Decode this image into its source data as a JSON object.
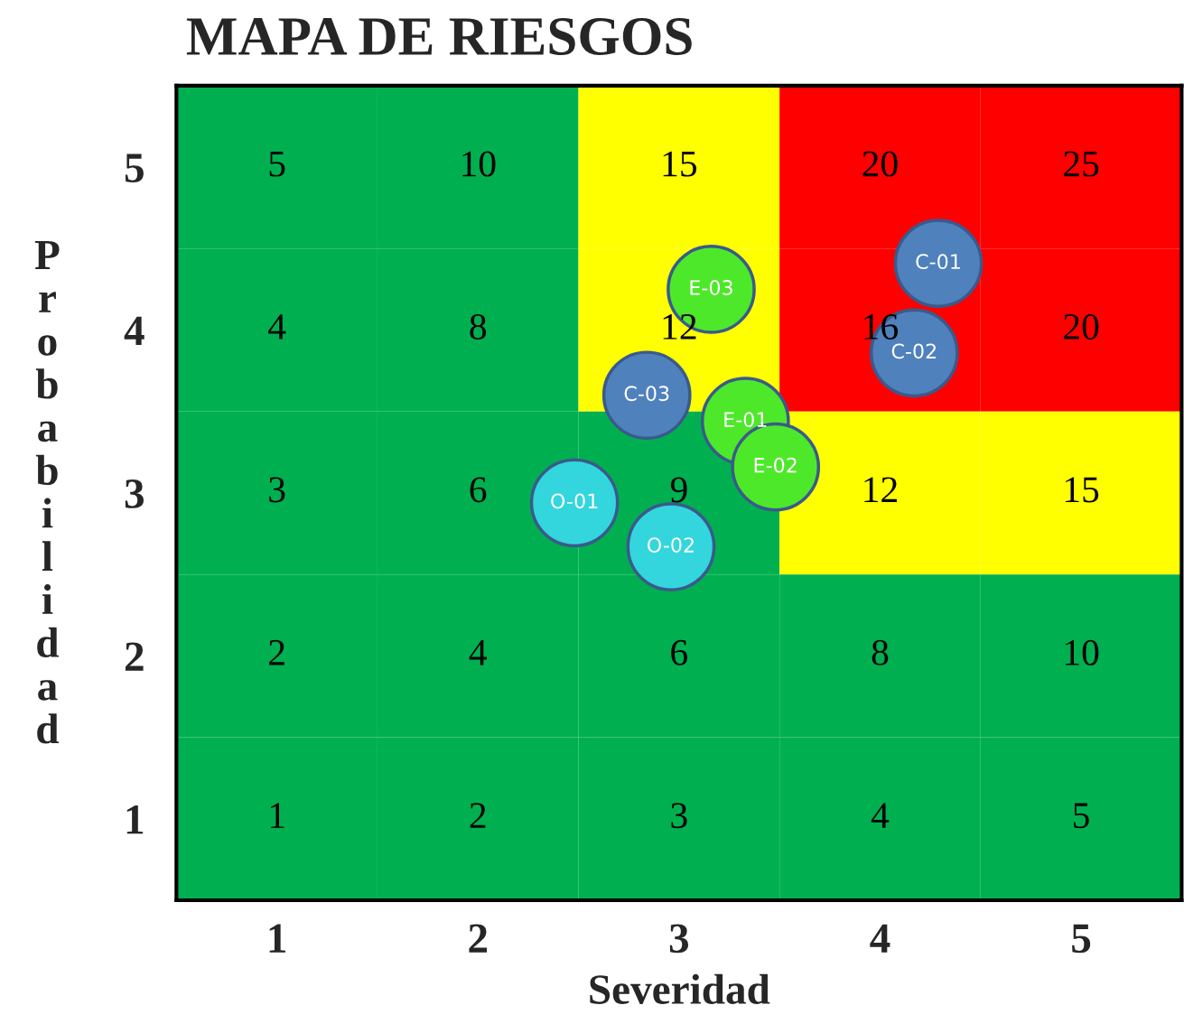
{
  "chart_data": {
    "type": "heatmap",
    "title": "MAPA DE RIESGOS",
    "xlabel": "Severidad",
    "ylabel": "Probabilidad",
    "x": [
      1,
      2,
      3,
      4,
      5
    ],
    "xlim": [
      0.5,
      5.5
    ],
    "xticks": [
      1,
      2,
      3,
      4,
      5
    ],
    "ylim": [
      0.5,
      5.5
    ],
    "yticks": [
      1,
      2,
      3,
      4,
      5
    ],
    "cells": [
      [
        5,
        10,
        15,
        20,
        25
      ],
      [
        4,
        8,
        12,
        16,
        20
      ],
      [
        3,
        6,
        9,
        12,
        15
      ],
      [
        2,
        4,
        6,
        8,
        10
      ],
      [
        1,
        2,
        3,
        4,
        5
      ]
    ],
    "colors": [
      [
        "#00b050",
        "#00b050",
        "#ffff00",
        "#ff0000",
        "#ff0000"
      ],
      [
        "#00b050",
        "#00b050",
        "#ffff00",
        "#ff0000",
        "#ff0000"
      ],
      [
        "#00b050",
        "#00b050",
        "#00b050",
        "#ffff00",
        "#ffff00"
      ],
      [
        "#00b050",
        "#00b050",
        "#00b050",
        "#00b050",
        "#00b050"
      ],
      [
        "#00b050",
        "#00b050",
        "#00b050",
        "#00b050",
        "#00b050"
      ]
    ],
    "data_labels": true,
    "series": [
      {
        "type": "scatter",
        "name": "C-01",
        "color": "#4f81bd",
        "x": [
          4.29
        ],
        "values": [
          4.41
        ],
        "value_labels": [
          null
        ]
      },
      {
        "type": "scatter",
        "name": "C-02",
        "color": "#4f81bd",
        "x": [
          4.17
        ],
        "values": [
          3.86
        ],
        "value_labels": [
          null
        ]
      },
      {
        "type": "scatter",
        "name": "E-03",
        "color": "#4ee82a",
        "x": [
          3.16
        ],
        "values": [
          4.25
        ],
        "value_labels": [
          null
        ]
      },
      {
        "type": "scatter",
        "name": "C-03",
        "color": "#4f81bd",
        "x": [
          2.84
        ],
        "values": [
          3.6
        ],
        "value_labels": [
          null
        ]
      },
      {
        "type": "scatter",
        "name": "E-01",
        "color": "#4ee82a",
        "x": [
          3.33
        ],
        "values": [
          3.44
        ],
        "value_labels": [
          null
        ]
      },
      {
        "type": "scatter",
        "name": "E-02",
        "color": "#4ee82a",
        "x": [
          3.48
        ],
        "values": [
          3.16
        ],
        "value_labels": [
          null
        ]
      },
      {
        "type": "scatter",
        "name": "O-01",
        "color": "#33d6dc",
        "x": [
          2.48
        ],
        "values": [
          2.94
        ],
        "value_labels": [
          null
        ]
      },
      {
        "type": "scatter",
        "name": "O-02",
        "color": "#33d6dc",
        "x": [
          2.96
        ],
        "values": [
          2.67
        ],
        "value_labels": [
          null
        ]
      }
    ],
    "marker": "circle",
    "grid": false,
    "legend": false
  }
}
